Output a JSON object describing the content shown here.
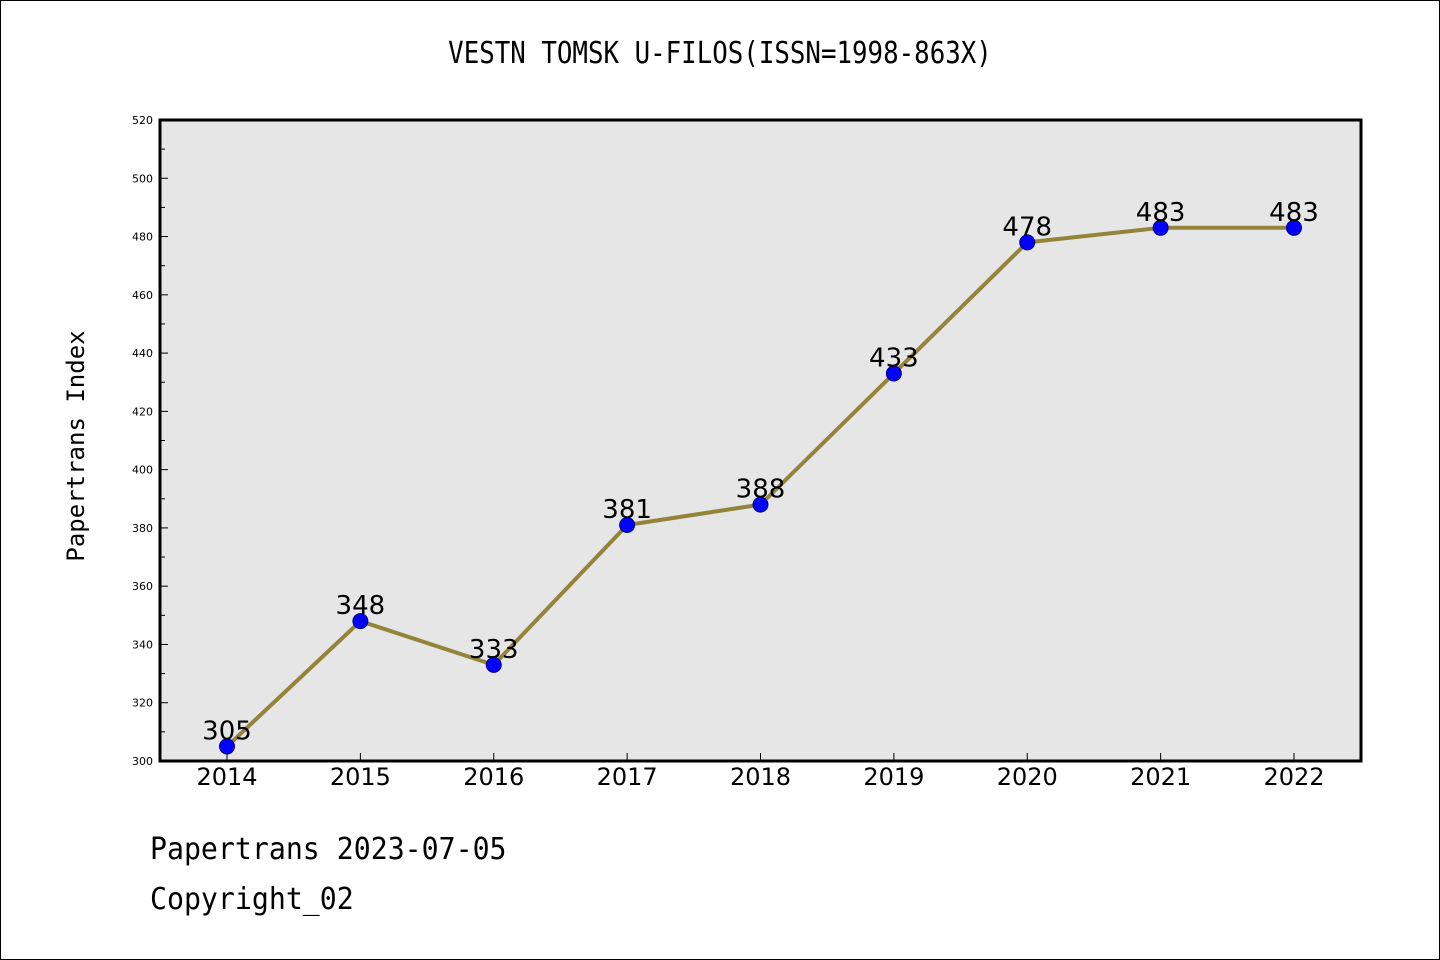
{
  "chart_data": {
    "type": "line",
    "title": "VESTN TOMSK U-FILOS(ISSN=1998-863X)",
    "xlabel": "",
    "ylabel": "Papertrans Index",
    "categories": [
      "2014",
      "2015",
      "2016",
      "2017",
      "2018",
      "2019",
      "2020",
      "2021",
      "2022"
    ],
    "series": [
      {
        "values": [
          305,
          348,
          333,
          381,
          388,
          433,
          478,
          483,
          483
        ]
      }
    ],
    "ylim": [
      300,
      520
    ],
    "yticks": [
      300,
      320,
      340,
      360,
      380,
      400,
      420,
      440,
      460,
      480,
      500,
      520
    ],
    "grid": false,
    "plot_background": "#e6e6e6",
    "line_color": "#948339",
    "marker_color": "#0000ff",
    "data_labels": true
  },
  "footer": {
    "line1": "Papertrans 2023-07-05",
    "line2": "Copyright_02"
  }
}
